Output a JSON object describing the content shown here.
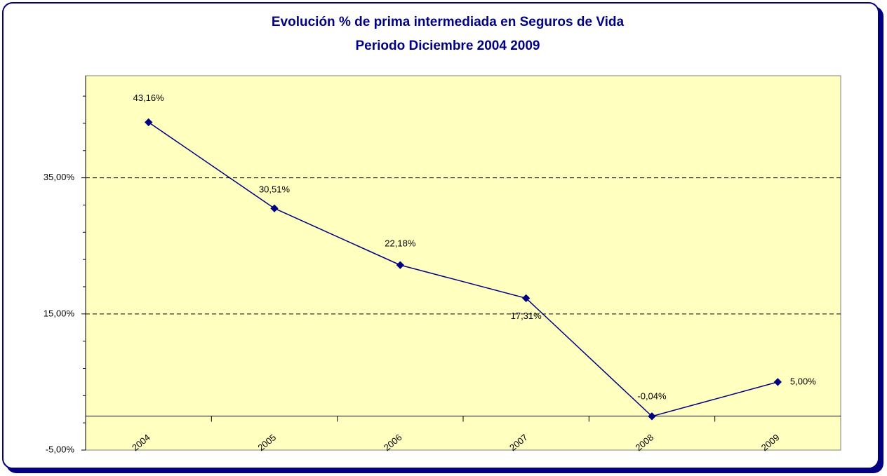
{
  "chart_data": {
    "type": "line",
    "title": "Evolución % de prima intermediada en Seguros de Vida",
    "subtitle": "Periodo Diciembre 2004 2009",
    "categories": [
      "2004",
      "2005",
      "2006",
      "2007",
      "2008",
      "2009"
    ],
    "series": [
      {
        "name": "Evolución",
        "color": "#000080",
        "values": [
          43.16,
          30.51,
          22.18,
          17.31,
          -0.04,
          5.0
        ],
        "value_labels": [
          "43,16%",
          "30,51%",
          "22,18%",
          "17,31%",
          "-0,04%",
          "5,00%"
        ]
      }
    ],
    "ylim": [
      -5,
      50
    ],
    "yticks": [
      {
        "value": -5,
        "label": "-5,00%"
      },
      {
        "value": 15,
        "label": "15,00%"
      },
      {
        "value": 35,
        "label": "35,00%"
      }
    ],
    "y_minor_ticks": [
      -1,
      3,
      7,
      11,
      19,
      23,
      27,
      31,
      39,
      43,
      47
    ],
    "grid": true
  }
}
